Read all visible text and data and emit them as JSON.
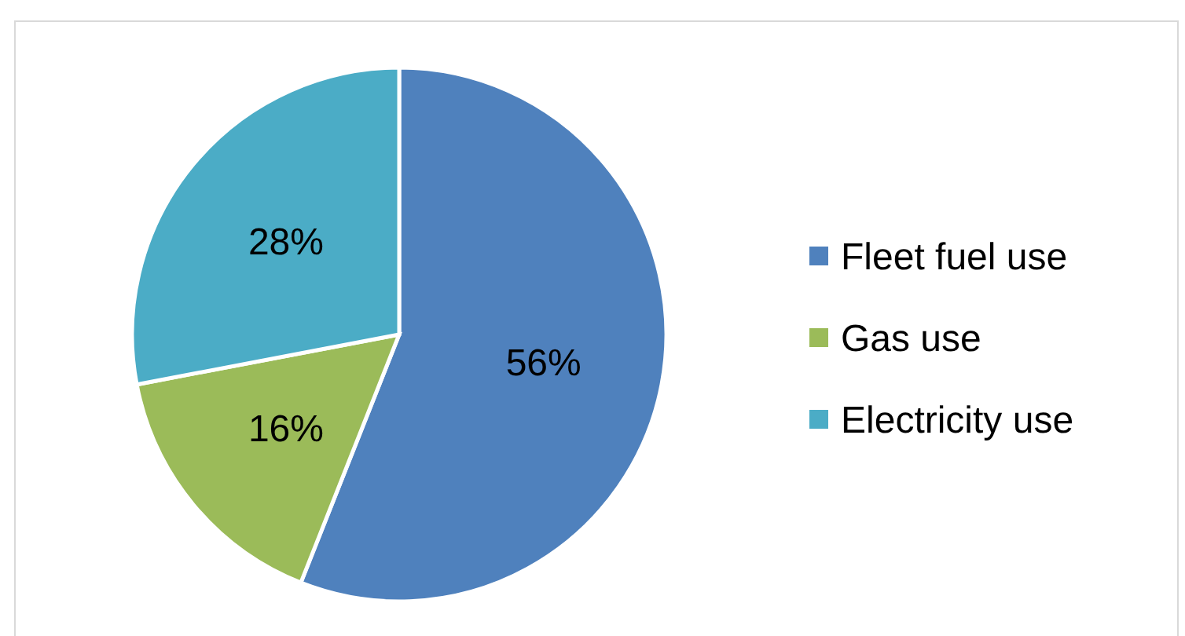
{
  "chart_data": {
    "type": "pie",
    "categories": [
      "Fleet fuel use",
      "Gas use",
      "Electricity use"
    ],
    "values": [
      56,
      16,
      28
    ],
    "colors": [
      "#4f81bd",
      "#9bbb59",
      "#4bacc6"
    ],
    "value_labels": [
      "56%",
      "16%",
      "28%"
    ],
    "legend": "right"
  }
}
